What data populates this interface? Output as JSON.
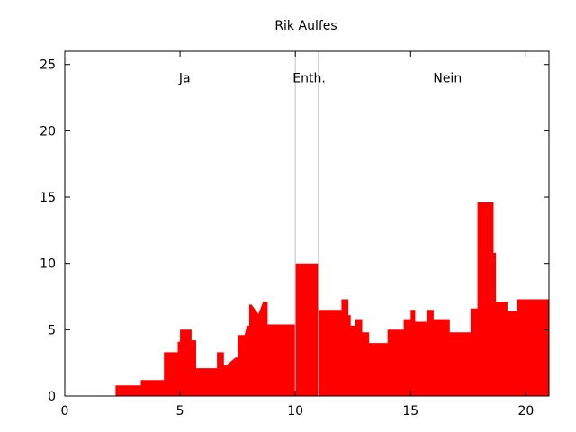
{
  "chart_data": {
    "type": "area",
    "title": "Rik Aulfes",
    "xlabel": "",
    "ylabel": "",
    "xlim": [
      0,
      21
    ],
    "ylim": [
      0,
      26
    ],
    "xticks": [
      0,
      5,
      10,
      15,
      20
    ],
    "yticks": [
      0,
      5,
      10,
      15,
      20,
      25
    ],
    "grid": false,
    "series": [
      {
        "color": "#ff0000",
        "x": [
          0,
          2.2,
          2.2,
          3.3,
          3.3,
          4.3,
          4.3,
          4.9,
          4.9,
          5.0,
          5.0,
          5.5,
          5.5,
          5.7,
          5.7,
          6.6,
          6.6,
          6.9,
          6.9,
          7.0,
          7.0,
          7.4,
          7.5,
          7.5,
          7.8,
          7.9,
          8.0,
          8.0,
          8.1,
          8.1,
          8.4,
          8.6,
          8.8,
          8.8,
          8.95,
          8.95,
          10.0,
          10.0,
          11.0,
          11.0,
          12.0,
          12.0,
          12.3,
          12.3,
          12.4,
          12.4,
          12.6,
          12.6,
          12.9,
          12.9,
          13.2,
          13.2,
          13.5,
          13.5,
          14.0,
          14.0,
          14.5,
          14.5,
          14.7,
          14.7,
          15.0,
          15.0,
          15.2,
          15.2,
          15.5,
          15.5,
          15.7,
          15.7,
          16.0,
          16.0,
          16.7,
          16.7,
          17.0,
          17.0,
          17.6,
          17.6,
          17.9,
          17.9,
          18.0,
          18.0,
          18.6,
          18.6,
          18.7,
          18.7,
          19.2,
          19.2,
          19.4,
          19.4,
          19.6,
          19.6,
          20.1,
          20.1,
          20.5,
          20.5,
          21.0
        ],
        "y": [
          0,
          0,
          0.8,
          0.8,
          1.2,
          1.2,
          3.3,
          3.3,
          4.1,
          4.1,
          5.0,
          5.0,
          4.2,
          4.2,
          2.1,
          2.1,
          3.3,
          3.3,
          2.3,
          2.3,
          2.3,
          2.9,
          2.9,
          4.6,
          4.6,
          5.3,
          5.3,
          6.9,
          6.9,
          6.9,
          6.2,
          7.1,
          7.1,
          5.4,
          5.4,
          5.4,
          5.4,
          10.0,
          10.0,
          6.5,
          6.5,
          7.3,
          7.3,
          6.1,
          6.1,
          5.3,
          5.3,
          5.8,
          5.8,
          4.8,
          4.8,
          4.0,
          4.0,
          4.0,
          4.0,
          5.0,
          5.0,
          5.0,
          5.0,
          5.8,
          5.8,
          6.5,
          6.5,
          5.6,
          5.6,
          5.6,
          5.6,
          6.5,
          6.5,
          5.8,
          5.8,
          4.8,
          4.8,
          4.8,
          4.8,
          6.6,
          6.6,
          14.6,
          14.6,
          14.6,
          14.6,
          10.8,
          10.8,
          7.1,
          7.1,
          6.4,
          6.4,
          6.4,
          6.4,
          7.3,
          7.3,
          7.3,
          7.3,
          7.3,
          7.3
        ]
      }
    ],
    "vlines": [
      10,
      11
    ],
    "vline_color": "#c0c0c0",
    "annotations": [
      {
        "text": "Ja",
        "x": 5.2,
        "y": 24
      },
      {
        "text": "Enth.",
        "x": 10.6,
        "y": 24
      },
      {
        "text": "Nein",
        "x": 16.6,
        "y": 24
      }
    ]
  }
}
